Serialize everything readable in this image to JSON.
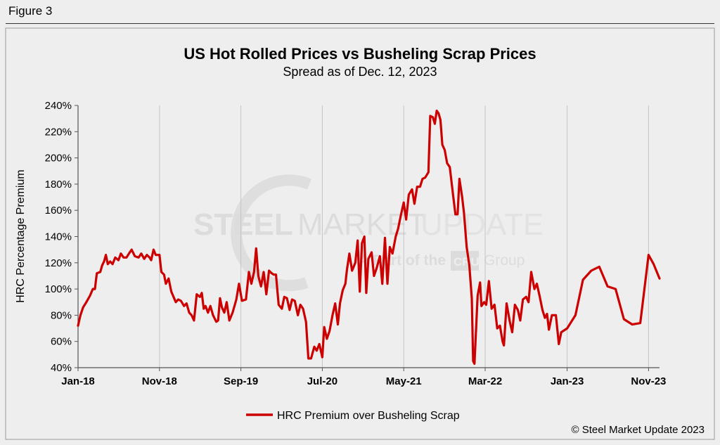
{
  "figure_label": "Figure 3",
  "copyright": "© Steel Market Update 2023",
  "watermark": {
    "line1_bold": "STEEL",
    "line1_mid": "MARKET",
    "line1_light": "UPDATE",
    "line2_pre": "A Part of the",
    "line2_badge": "CRU",
    "line2_post": "Group"
  },
  "colors": {
    "series": "#cc0000",
    "background": "#eeeeee",
    "axis": "#555555"
  },
  "chart_data": {
    "type": "line",
    "title": "US Hot Rolled Prices vs Busheling Scrap Prices",
    "subtitle": "Spread as of Dec. 12, 2023",
    "ylabel": "HRC Percentage Premium",
    "xlabel": "",
    "ylim": [
      40,
      240
    ],
    "ytick_values": [
      40,
      60,
      80,
      100,
      120,
      140,
      160,
      180,
      200,
      220,
      240
    ],
    "ytick_labels": [
      "40%",
      "60%",
      "80%",
      "100%",
      "120%",
      "140%",
      "160%",
      "180%",
      "200%",
      "220%",
      "240%"
    ],
    "x_start": "2018-01-01",
    "x_end": "2023-12-12",
    "xtick_dates": [
      "2018-01-01",
      "2018-11-01",
      "2019-09-01",
      "2020-07-01",
      "2021-05-01",
      "2022-03-01",
      "2023-01-01",
      "2023-11-01"
    ],
    "xtick_labels": [
      "Jan-18",
      "Nov-18",
      "Sep-19",
      "Jul-20",
      "May-21",
      "Mar-22",
      "Jan-23",
      "Nov-23"
    ],
    "grid": "vertical",
    "legend_position": "bottom-center",
    "series": [
      {
        "name": "HRC Premium over Busheling Scrap",
        "color": "#cc0000",
        "points": [
          [
            "2018-01-01",
            72
          ],
          [
            "2018-01-10",
            80
          ],
          [
            "2018-01-20",
            86
          ],
          [
            "2018-02-01",
            90
          ],
          [
            "2018-02-15",
            95
          ],
          [
            "2018-02-25",
            100
          ],
          [
            "2018-03-05",
            100
          ],
          [
            "2018-03-12",
            112
          ],
          [
            "2018-03-25",
            113
          ],
          [
            "2018-04-01",
            118
          ],
          [
            "2018-04-08",
            121
          ],
          [
            "2018-04-15",
            126
          ],
          [
            "2018-04-22",
            119
          ],
          [
            "2018-05-01",
            121
          ],
          [
            "2018-05-10",
            119
          ],
          [
            "2018-05-20",
            124
          ],
          [
            "2018-06-01",
            122
          ],
          [
            "2018-06-10",
            127
          ],
          [
            "2018-06-20",
            124
          ],
          [
            "2018-07-01",
            124
          ],
          [
            "2018-07-10",
            127
          ],
          [
            "2018-07-20",
            130
          ],
          [
            "2018-08-01",
            125
          ],
          [
            "2018-08-15",
            124
          ],
          [
            "2018-08-25",
            127
          ],
          [
            "2018-09-05",
            123
          ],
          [
            "2018-09-15",
            126
          ],
          [
            "2018-09-25",
            124
          ],
          [
            "2018-10-01",
            122
          ],
          [
            "2018-10-10",
            130
          ],
          [
            "2018-10-18",
            126
          ],
          [
            "2018-11-01",
            126
          ],
          [
            "2018-11-08",
            113
          ],
          [
            "2018-11-18",
            111
          ],
          [
            "2018-11-25",
            104
          ],
          [
            "2018-12-05",
            108
          ],
          [
            "2018-12-15",
            98
          ],
          [
            "2019-01-01",
            90
          ],
          [
            "2019-01-10",
            92
          ],
          [
            "2019-01-20",
            91
          ],
          [
            "2019-02-01",
            87
          ],
          [
            "2019-02-10",
            89
          ],
          [
            "2019-02-20",
            82
          ],
          [
            "2019-03-01",
            80
          ],
          [
            "2019-03-10",
            76
          ],
          [
            "2019-03-20",
            96
          ],
          [
            "2019-04-01",
            94
          ],
          [
            "2019-04-08",
            97
          ],
          [
            "2019-04-15",
            85
          ],
          [
            "2019-04-22",
            87
          ],
          [
            "2019-05-01",
            82
          ],
          [
            "2019-05-10",
            87
          ],
          [
            "2019-05-20",
            80
          ],
          [
            "2019-06-01",
            75
          ],
          [
            "2019-06-08",
            76
          ],
          [
            "2019-06-15",
            93
          ],
          [
            "2019-06-22",
            86
          ],
          [
            "2019-07-01",
            82
          ],
          [
            "2019-07-10",
            90
          ],
          [
            "2019-07-20",
            76
          ],
          [
            "2019-08-01",
            82
          ],
          [
            "2019-08-15",
            92
          ],
          [
            "2019-08-25",
            104
          ],
          [
            "2019-09-05",
            91
          ],
          [
            "2019-09-20",
            92
          ],
          [
            "2019-10-01",
            113
          ],
          [
            "2019-10-10",
            104
          ],
          [
            "2019-10-20",
            113
          ],
          [
            "2019-10-28",
            131
          ],
          [
            "2019-11-05",
            110
          ],
          [
            "2019-11-15",
            102
          ],
          [
            "2019-11-25",
            113
          ],
          [
            "2019-12-05",
            96
          ],
          [
            "2019-12-15",
            114
          ],
          [
            "2019-12-25",
            112
          ],
          [
            "2020-01-01",
            111
          ],
          [
            "2020-01-10",
            111
          ],
          [
            "2020-01-20",
            88
          ],
          [
            "2020-02-01",
            85
          ],
          [
            "2020-02-10",
            94
          ],
          [
            "2020-02-20",
            93
          ],
          [
            "2020-03-01",
            84
          ],
          [
            "2020-03-10",
            92
          ],
          [
            "2020-03-20",
            91
          ],
          [
            "2020-04-01",
            80
          ],
          [
            "2020-04-10",
            88
          ],
          [
            "2020-04-20",
            85
          ],
          [
            "2020-05-01",
            75
          ],
          [
            "2020-05-10",
            47
          ],
          [
            "2020-05-20",
            47
          ],
          [
            "2020-06-01",
            56
          ],
          [
            "2020-06-10",
            53
          ],
          [
            "2020-06-20",
            58
          ],
          [
            "2020-07-01",
            48
          ],
          [
            "2020-07-08",
            71
          ],
          [
            "2020-07-18",
            62
          ],
          [
            "2020-07-28",
            68
          ],
          [
            "2020-08-08",
            80
          ],
          [
            "2020-08-18",
            89
          ],
          [
            "2020-08-28",
            73
          ],
          [
            "2020-09-05",
            89
          ],
          [
            "2020-09-15",
            99
          ],
          [
            "2020-09-25",
            104
          ],
          [
            "2020-10-01",
            115
          ],
          [
            "2020-10-10",
            127
          ],
          [
            "2020-10-20",
            114
          ],
          [
            "2020-11-01",
            120
          ],
          [
            "2020-11-10",
            137
          ],
          [
            "2020-11-18",
            98
          ],
          [
            "2020-11-26",
            135
          ],
          [
            "2020-12-05",
            140
          ],
          [
            "2020-12-12",
            97
          ],
          [
            "2020-12-20",
            123
          ],
          [
            "2021-01-01",
            128
          ],
          [
            "2021-01-10",
            110
          ],
          [
            "2021-01-20",
            116
          ],
          [
            "2021-02-01",
            125
          ],
          [
            "2021-02-10",
            104
          ],
          [
            "2021-02-20",
            139
          ],
          [
            "2021-03-01",
            104
          ],
          [
            "2021-03-10",
            132
          ],
          [
            "2021-03-20",
            127
          ],
          [
            "2021-04-01",
            140
          ],
          [
            "2021-04-10",
            146
          ],
          [
            "2021-04-20",
            156
          ],
          [
            "2021-05-01",
            166
          ],
          [
            "2021-05-10",
            153
          ],
          [
            "2021-05-20",
            172
          ],
          [
            "2021-06-01",
            176
          ],
          [
            "2021-06-10",
            165
          ],
          [
            "2021-06-20",
            178
          ],
          [
            "2021-07-01",
            178
          ],
          [
            "2021-07-10",
            184
          ],
          [
            "2021-07-20",
            185
          ],
          [
            "2021-08-01",
            189
          ],
          [
            "2021-08-08",
            232
          ],
          [
            "2021-08-18",
            231
          ],
          [
            "2021-08-25",
            226
          ],
          [
            "2021-09-01",
            236
          ],
          [
            "2021-09-08",
            234
          ],
          [
            "2021-09-15",
            229
          ],
          [
            "2021-09-22",
            210
          ],
          [
            "2021-10-01",
            206
          ],
          [
            "2021-10-10",
            196
          ],
          [
            "2021-10-20",
            193
          ],
          [
            "2021-11-01",
            172
          ],
          [
            "2021-11-10",
            157
          ],
          [
            "2021-11-18",
            157
          ],
          [
            "2021-11-25",
            184
          ],
          [
            "2021-12-05",
            170
          ],
          [
            "2021-12-12",
            158
          ],
          [
            "2021-12-22",
            132
          ],
          [
            "2022-01-01",
            118
          ],
          [
            "2022-01-10",
            93
          ],
          [
            "2022-01-15",
            45
          ],
          [
            "2022-01-20",
            43
          ],
          [
            "2022-02-01",
            95
          ],
          [
            "2022-02-10",
            105
          ],
          [
            "2022-02-15",
            87
          ],
          [
            "2022-02-25",
            90
          ],
          [
            "2022-03-05",
            88
          ],
          [
            "2022-03-15",
            106
          ],
          [
            "2022-03-25",
            85
          ],
          [
            "2022-04-05",
            88
          ],
          [
            "2022-04-15",
            70
          ],
          [
            "2022-04-25",
            72
          ],
          [
            "2022-05-05",
            60
          ],
          [
            "2022-05-10",
            57
          ],
          [
            "2022-05-20",
            89
          ],
          [
            "2022-06-01",
            75
          ],
          [
            "2022-06-10",
            67
          ],
          [
            "2022-06-20",
            88
          ],
          [
            "2022-07-01",
            84
          ],
          [
            "2022-07-10",
            76
          ],
          [
            "2022-07-20",
            92
          ],
          [
            "2022-08-01",
            94
          ],
          [
            "2022-08-10",
            90
          ],
          [
            "2022-08-20",
            113
          ],
          [
            "2022-09-01",
            100
          ],
          [
            "2022-09-10",
            104
          ],
          [
            "2022-09-20",
            95
          ],
          [
            "2022-10-01",
            84
          ],
          [
            "2022-10-10",
            78
          ],
          [
            "2022-10-18",
            81
          ],
          [
            "2022-10-25",
            69
          ],
          [
            "2022-11-05",
            80
          ],
          [
            "2022-11-20",
            80
          ],
          [
            "2022-12-01",
            58
          ],
          [
            "2022-12-10",
            67
          ],
          [
            "2023-01-01",
            70
          ],
          [
            "2023-02-01",
            80
          ],
          [
            "2023-03-01",
            107
          ],
          [
            "2023-04-01",
            114
          ],
          [
            "2023-05-01",
            117
          ],
          [
            "2023-06-01",
            102
          ],
          [
            "2023-07-01",
            100
          ],
          [
            "2023-08-01",
            77
          ],
          [
            "2023-09-01",
            73
          ],
          [
            "2023-10-01",
            74
          ],
          [
            "2023-11-01",
            126
          ],
          [
            "2023-11-20",
            119
          ],
          [
            "2023-12-12",
            108
          ]
        ]
      }
    ]
  }
}
